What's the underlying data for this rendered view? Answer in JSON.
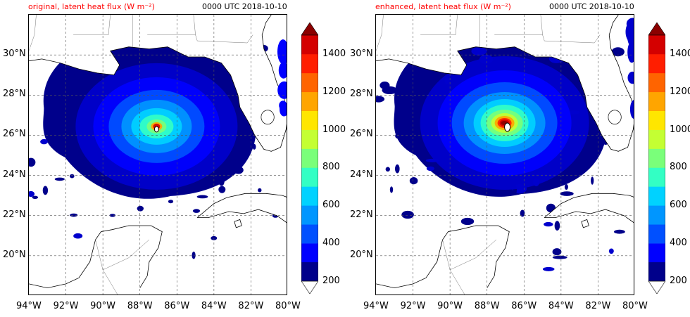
{
  "figure": {
    "colors": {
      "land_outline": "#000000",
      "grid": "#555555",
      "title_red": "#ff0000"
    },
    "colormap": [
      "#00008b",
      "#0000cd",
      "#0000ff",
      "#0050ff",
      "#0096ff",
      "#00d2ff",
      "#33ffc4",
      "#7aff7a",
      "#c4ff33",
      "#ffe600",
      "#ffa500",
      "#ff6400",
      "#ff1e00",
      "#d40000",
      "#8b0000"
    ]
  },
  "chart_data": [
    {
      "type": "heatmap",
      "title": "original, latent heat flux (W m⁻²)",
      "subtitle": "0000 UTC 2018-10-10",
      "xlabel": "",
      "ylabel": "",
      "xlim": [
        -94,
        -80
      ],
      "ylim": [
        18,
        32
      ],
      "xticks": [
        "94°W",
        "92°W",
        "90°W",
        "88°W",
        "86°W",
        "84°W",
        "82°W",
        "80°W"
      ],
      "yticks": [
        "20°N",
        "22°N",
        "24°N",
        "26°N",
        "28°N",
        "30°N"
      ],
      "grid": true,
      "colorbar": {
        "min": 200,
        "max": 1500,
        "step": 100,
        "extend": "both",
        "tick_labels": [
          "200",
          "400",
          "600",
          "800",
          "1000",
          "1200",
          "1400"
        ]
      },
      "storm_center": {
        "lon": -87.1,
        "lat": 26.3
      },
      "field_description_levels": {
        "outer_max": 300,
        "inner_max": 800,
        "core_max": 1400
      }
    },
    {
      "type": "heatmap",
      "title": "enhanced, latent heat flux (W m⁻²)",
      "subtitle": "0000 UTC 2018-10-10",
      "xlabel": "",
      "ylabel": "",
      "xlim": [
        -94,
        -80
      ],
      "ylim": [
        18,
        32
      ],
      "xticks": [
        "94°W",
        "92°W",
        "90°W",
        "88°W",
        "86°W",
        "84°W",
        "82°W",
        "80°W"
      ],
      "yticks": [
        "20°N",
        "22°N",
        "24°N",
        "26°N",
        "28°N",
        "30°N"
      ],
      "grid": true,
      "colorbar": {
        "min": 200,
        "max": 1500,
        "step": 100,
        "extend": "both",
        "tick_labels": [
          "200",
          "400",
          "600",
          "800",
          "1000",
          "1200",
          "1400"
        ]
      },
      "storm_center": {
        "lon": -86.9,
        "lat": 26.4
      },
      "field_description_levels": {
        "outer_max": 400,
        "inner_max": 1000,
        "core_max": 1500
      }
    }
  ]
}
